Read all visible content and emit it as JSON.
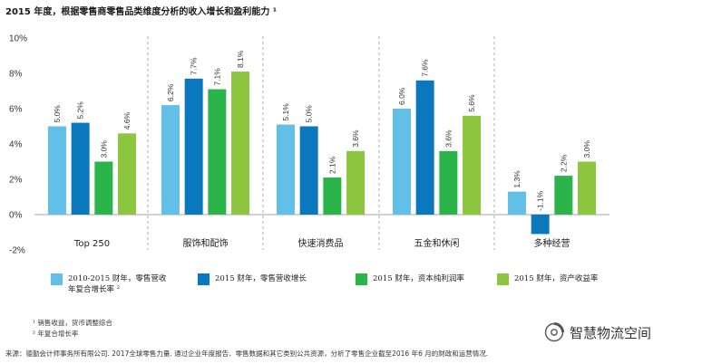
{
  "title": "2015 年度，根据零售商零售品类维度分析的收入增长和盈利能力 ¹",
  "chart_data": {
    "type": "bar",
    "title": "2015 年度，根据零售商零售品类维度分析的收入增长和盈利能力 ¹",
    "categories": [
      "Top 250",
      "服饰和配饰",
      "快速消费品",
      "五金和休闲",
      "多种经营"
    ],
    "series": [
      {
        "name": "2010-2015 财年，零售营收年复合增长率 ²",
        "color": "#62bfe8",
        "values": [
          5.0,
          6.2,
          5.1,
          6.0,
          1.3
        ],
        "labels": [
          "5.0%",
          "6.2%",
          "5.1%",
          "6.0%",
          "1.3%"
        ]
      },
      {
        "name": "2015 财年，零售营收增长",
        "color": "#0a78bd",
        "values": [
          5.2,
          7.7,
          5.0,
          7.6,
          -1.1
        ],
        "labels": [
          "5.2%",
          "7.7%",
          "5.0%",
          "7.6%",
          "-1.1%"
        ]
      },
      {
        "name": "2015 财年，资本纯利润率",
        "color": "#2ab44a",
        "values": [
          3.0,
          7.1,
          2.1,
          3.6,
          2.2
        ],
        "labels": [
          "3.0%",
          "7.1%",
          "2.1%",
          "3.6%",
          "2.2%"
        ]
      },
      {
        "name": "2015 财年，资产收益率",
        "color": "#8cc63e",
        "values": [
          4.6,
          8.1,
          3.6,
          5.6,
          3.0
        ],
        "labels": [
          "4.6%",
          "8.1%",
          "3.6%",
          "5.6%",
          "3.0%"
        ]
      }
    ],
    "ylim": [
      -2,
      10
    ],
    "yticks": [
      -2,
      0,
      2,
      4,
      6,
      8,
      10
    ],
    "ytick_labels": [
      "-2%",
      "0%",
      "2%",
      "4%",
      "6%",
      "8%",
      "10%"
    ],
    "group_separators": "dashed",
    "legend_position": "bottom",
    "xlabel": "",
    "ylabel": ""
  },
  "legend": [
    {
      "text": "2010-2015 财年，零售营收\n年复合增长率 ²",
      "color": "#62bfe8"
    },
    {
      "text": "2015 财年，零售营收增长",
      "color": "#0a78bd"
    },
    {
      "text": "2015 财年，资本纯利润率",
      "color": "#2ab44a"
    },
    {
      "text": "2015 财年，资产收益率",
      "color": "#8cc63e"
    }
  ],
  "footnotes": {
    "note1": "¹ 销售收益，货币调整综合",
    "note2": "² 年复合增长率"
  },
  "source": "来源：德勤会计师事务所有限公司. 2017全球零售力量. 通过企业年度报告、零售数据和其它类别公共资源，分析了零售企业截至2016 年6 月的财政和运营情况.",
  "watermark": "智慧物流空间"
}
